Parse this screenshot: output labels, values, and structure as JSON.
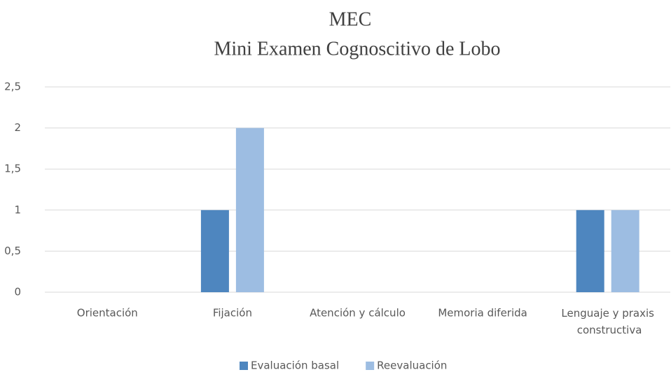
{
  "chart_data": {
    "type": "bar",
    "title": "MEC",
    "subtitle": "Mini Examen Cognoscitivo de Lobo",
    "categories": [
      "Orientación",
      "Fijación",
      "Atención y cálculo",
      "Memoria diferida",
      "Lenguaje y praxis constructiva"
    ],
    "series": [
      {
        "name": "Evaluación basal",
        "color": "#4e86bf",
        "values": [
          0,
          1,
          0,
          0,
          1
        ]
      },
      {
        "name": "Reevaluación",
        "color": "#9dbde2",
        "values": [
          0,
          2,
          0,
          0,
          1
        ]
      }
    ],
    "ylim": [
      0,
      2.5
    ],
    "yticks": [
      0,
      {
        "value": 0.5,
        "label": "0,5"
      },
      1,
      {
        "value": 1.5,
        "label": "1,5"
      },
      2,
      {
        "value": 2.5,
        "label": "2,5"
      }
    ],
    "grid": true,
    "legend": "bottom"
  }
}
